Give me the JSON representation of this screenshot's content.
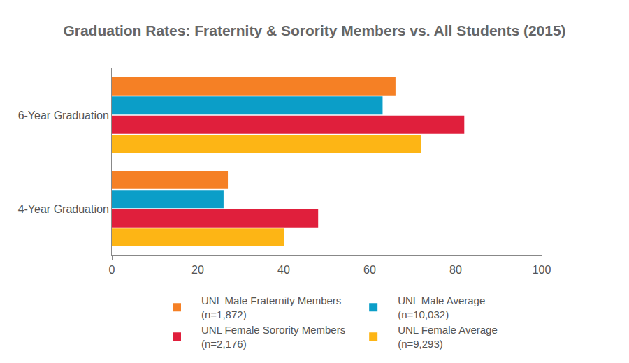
{
  "chart_data": {
    "type": "bar",
    "title": "Graduation Rates: Fraternity & Sorority Members vs. All Students (2015)",
    "orientation": "horizontal",
    "categories": [
      "6-Year Graduation",
      "4-Year Graduation"
    ],
    "series": [
      {
        "name": "UNL Male Fraternity Members\n(n=1,872)",
        "color": "#f58025",
        "values": [
          66,
          27
        ]
      },
      {
        "name": "UNL Male Average\n(n=10,032)",
        "color": "#0b9ec8",
        "values": [
          63,
          26
        ]
      },
      {
        "name": "UNL Female Sorority Members\n(n=2,176)",
        "color": "#e01f3c",
        "values": [
          82,
          48
        ]
      },
      {
        "name": "UNL Female Average\n(n=9,293)",
        "color": "#fdb515",
        "values": [
          72,
          40
        ]
      }
    ],
    "xlim": [
      0,
      100
    ],
    "xticks": [
      0,
      20,
      40,
      60,
      80,
      100
    ],
    "grid": false,
    "legend": "bottom"
  }
}
